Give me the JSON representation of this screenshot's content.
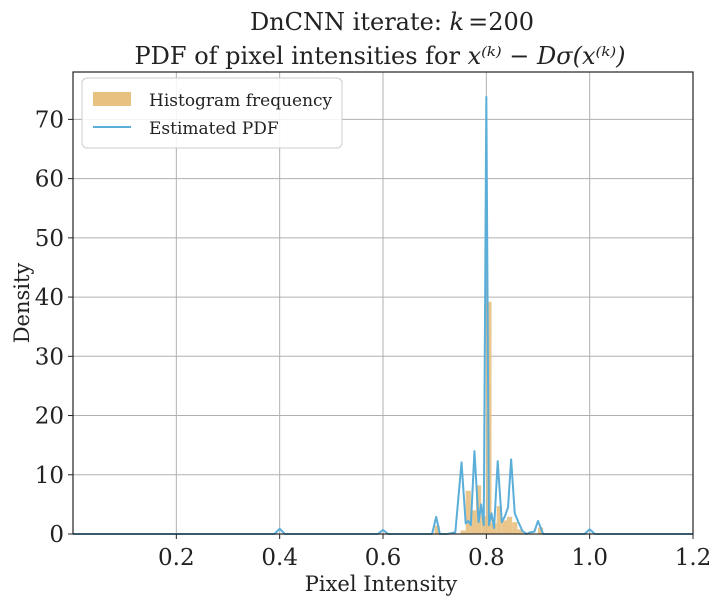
{
  "chart_data": {
    "type": "bar",
    "title_line1_text": "DnCNN iterate: ",
    "title_line1_k": "k",
    "title_line1_value": "=200",
    "title_line2_text": "PDF of pixel intensities for ",
    "title_line2_math": "x⁽ᵏ⁾ − Dσ(x⁽ᵏ⁾)",
    "xlabel": "Pixel Intensity",
    "ylabel": "Density",
    "xlim": [
      0.0,
      1.2
    ],
    "ylim": [
      0,
      78
    ],
    "xticks": [
      "0.2",
      "0.4",
      "0.6",
      "0.8",
      "1.0",
      "1.2"
    ],
    "xtick_values": [
      0.2,
      0.4,
      0.6,
      0.8,
      1.0,
      1.2
    ],
    "yticks": [
      "0",
      "10",
      "20",
      "30",
      "40",
      "50",
      "60",
      "70"
    ],
    "ytick_values": [
      0,
      10,
      20,
      30,
      40,
      50,
      60,
      70
    ],
    "grid": true,
    "legend_position": "top-left",
    "series": [
      {
        "name": "Histogram frequency",
        "type": "bar",
        "color": "#e8c07f",
        "bin_width": 0.01,
        "bins": [
          {
            "x": 0.7,
            "value": 1.4
          },
          {
            "x": 0.75,
            "value": 0.6
          },
          {
            "x": 0.76,
            "value": 7.3
          },
          {
            "x": 0.77,
            "value": 4.0
          },
          {
            "x": 0.78,
            "value": 8.2
          },
          {
            "x": 0.79,
            "value": 3.0
          },
          {
            "x": 0.8,
            "value": 39.2
          },
          {
            "x": 0.81,
            "value": 1.8
          },
          {
            "x": 0.82,
            "value": 4.7
          },
          {
            "x": 0.83,
            "value": 2.3
          },
          {
            "x": 0.84,
            "value": 2.9
          },
          {
            "x": 0.85,
            "value": 2.0
          },
          {
            "x": 0.86,
            "value": 0.8
          },
          {
            "x": 0.9,
            "value": 1.1
          }
        ]
      },
      {
        "name": "Estimated PDF",
        "type": "line",
        "color": "#5aaed8",
        "x": [
          0.0,
          0.39,
          0.4,
          0.41,
          0.59,
          0.6,
          0.61,
          0.695,
          0.703,
          0.71,
          0.725,
          0.74,
          0.752,
          0.76,
          0.765,
          0.77,
          0.777,
          0.785,
          0.79,
          0.795,
          0.8,
          0.805,
          0.81,
          0.815,
          0.822,
          0.83,
          0.836,
          0.842,
          0.848,
          0.855,
          0.862,
          0.87,
          0.878,
          0.885,
          0.893,
          0.9,
          0.91,
          0.99,
          1.0,
          1.01,
          1.2
        ],
        "y": [
          0.0,
          0.0,
          0.9,
          0.0,
          0.0,
          0.7,
          0.0,
          0.0,
          2.9,
          0.0,
          0.0,
          0.3,
          12.1,
          1.8,
          2.2,
          1.5,
          14.0,
          2.0,
          5.0,
          1.5,
          73.8,
          1.5,
          3.5,
          1.0,
          12.3,
          2.0,
          3.0,
          4.5,
          12.6,
          3.5,
          2.0,
          0.5,
          0.0,
          0.3,
          0.4,
          2.2,
          0.0,
          0.0,
          0.8,
          0.0,
          0.0
        ]
      }
    ]
  }
}
